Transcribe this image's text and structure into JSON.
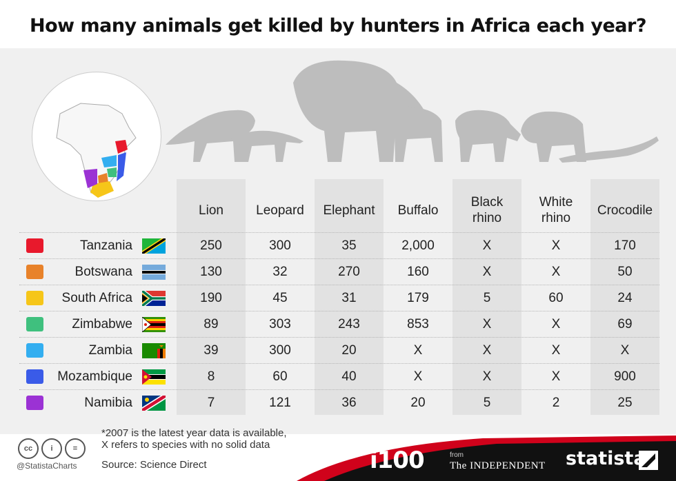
{
  "title": "How many animals get killed by hunters in Africa each year?",
  "columns": [
    "Lion",
    "Leopard",
    "Elephant",
    "Buffalo",
    "Black rhino",
    "White rhino",
    "Crocodile"
  ],
  "rows": [
    {
      "country": "Tanzania",
      "color": "#e8192c",
      "values": [
        "250",
        "300",
        "35",
        "2,000",
        "X",
        "X",
        "170"
      ]
    },
    {
      "country": "Botswana",
      "color": "#e8822a",
      "values": [
        "130",
        "32",
        "270",
        "160",
        "X",
        "X",
        "50"
      ]
    },
    {
      "country": "South Africa",
      "color": "#f6c619",
      "values": [
        "190",
        "45",
        "31",
        "179",
        "5",
        "60",
        "24"
      ]
    },
    {
      "country": "Zimbabwe",
      "color": "#3fc07e",
      "values": [
        "89",
        "303",
        "243",
        "853",
        "X",
        "X",
        "69"
      ]
    },
    {
      "country": "Zambia",
      "color": "#33aef0",
      "values": [
        "39",
        "300",
        "20",
        "X",
        "X",
        "X",
        "X"
      ]
    },
    {
      "country": "Mozambique",
      "color": "#3a5be8",
      "values": [
        "8",
        "60",
        "40",
        "X",
        "X",
        "X",
        "900"
      ]
    },
    {
      "country": "Namibia",
      "color": "#9b32d4",
      "values": [
        "7",
        "121",
        "36",
        "20",
        "5",
        "2",
        "25"
      ]
    }
  ],
  "chart_data": {
    "type": "table",
    "title": "How many animals get killed by hunters in Africa each year?",
    "columns": [
      "Lion",
      "Leopard",
      "Elephant",
      "Buffalo",
      "Black rhino",
      "White rhino",
      "Crocodile"
    ],
    "rows": [
      {
        "country": "Tanzania",
        "values": [
          250,
          300,
          35,
          2000,
          "X",
          "X",
          170
        ]
      },
      {
        "country": "Botswana",
        "values": [
          130,
          32,
          270,
          160,
          "X",
          "X",
          50
        ]
      },
      {
        "country": "South Africa",
        "values": [
          190,
          45,
          31,
          179,
          5,
          60,
          24
        ]
      },
      {
        "country": "Zimbabwe",
        "values": [
          89,
          303,
          243,
          853,
          "X",
          "X",
          69
        ]
      },
      {
        "country": "Zambia",
        "values": [
          39,
          300,
          20,
          "X",
          "X",
          "X",
          "X"
        ]
      },
      {
        "country": "Mozambique",
        "values": [
          8,
          60,
          40,
          "X",
          "X",
          "X",
          900
        ]
      },
      {
        "country": "Namibia",
        "values": [
          7,
          121,
          36,
          20,
          5,
          2,
          25
        ]
      }
    ]
  },
  "footer": {
    "note_line1": "*2007 is the latest year data is available,",
    "note_line2": "X refers to species with no solid data",
    "source": "Source: Science Direct",
    "handle": "@StatistaCharts",
    "i100": "i100",
    "from": "from",
    "independent": "The INDEPENDENT",
    "statista": "statista"
  }
}
